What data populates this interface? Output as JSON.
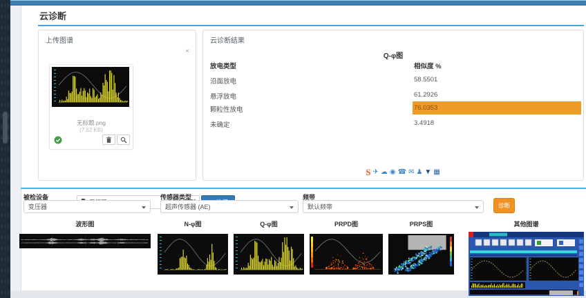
{
  "page": {
    "title": "云诊断"
  },
  "upload_panel": {
    "title": "上传图谱",
    "close_label": "×",
    "file": {
      "name": "无标题.png",
      "size": "(7.62 KB)"
    },
    "remove_label": "移除",
    "choose_label": "选择"
  },
  "result_panel": {
    "title": "云诊断结果",
    "chart_title": "Q-φ图",
    "table": {
      "headers": [
        "放电类型",
        "相似度 %"
      ],
      "rows": [
        {
          "type": "沿面放电",
          "value": "58.5501",
          "highlight": false
        },
        {
          "type": "悬浮放电",
          "value": "61.2926",
          "highlight": false
        },
        {
          "type": "颗粒性放电",
          "value": "76.0353",
          "highlight": true
        },
        {
          "type": "未确定",
          "value": "3.4918",
          "highlight": false
        }
      ]
    },
    "share_icons": [
      {
        "name": "share-service-icon",
        "glyph": "S",
        "color": "#f05a28"
      },
      {
        "name": "wechat-share-icon",
        "glyph": "✈",
        "color": "#3e86c6"
      },
      {
        "name": "weibo-share-icon",
        "glyph": "☁",
        "color": "#3e86c6"
      },
      {
        "name": "qzone-share-icon",
        "glyph": "◉",
        "color": "#3e86c6"
      },
      {
        "name": "qq-share-icon",
        "glyph": "☎",
        "color": "#3e86c6"
      },
      {
        "name": "mail-share-icon",
        "glyph": "✉",
        "color": "#3e86c6"
      },
      {
        "name": "people-share-icon",
        "glyph": "♟",
        "color": "#3e86c6"
      },
      {
        "name": "filter-share-icon",
        "glyph": "▼",
        "color": "#1d4f8a"
      },
      {
        "name": "stats-share-icon",
        "glyph": "▦",
        "color": "#2a66a8"
      }
    ]
  },
  "diagnosis_form": {
    "fields": [
      {
        "label": "被检设备",
        "value": "变压器"
      },
      {
        "label": "传感器类型",
        "value": "超声传感器 (AE)"
      },
      {
        "label": "频带",
        "value": "默认频带"
      }
    ],
    "submit_label": "诊断"
  },
  "thumbnails": [
    {
      "label": "波形图"
    },
    {
      "label": "N-φ图"
    },
    {
      "label": "Q-φ图"
    },
    {
      "label": "PRPD图"
    },
    {
      "label": "PRPS图"
    },
    {
      "label": "其他图谱"
    }
  ],
  "colors": {
    "accent_blue": "#49a5d9",
    "highlight_orange": "#ef9c27",
    "primary_button_blue": "#337ab7",
    "diagnose_button_orange": "#ef9123"
  }
}
